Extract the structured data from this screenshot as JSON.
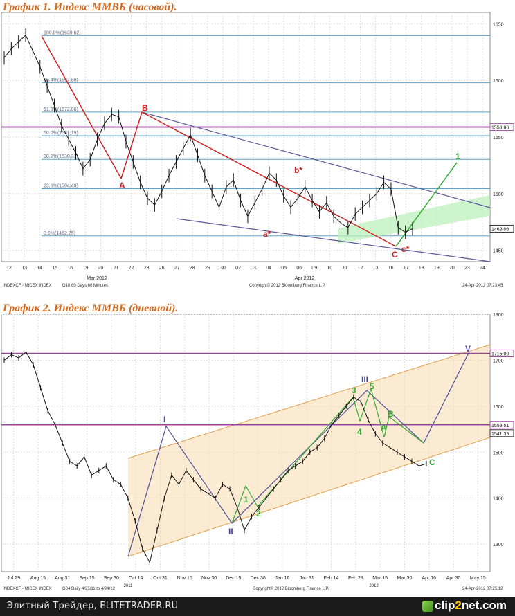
{
  "chart_data": [
    {
      "type": "line",
      "title": "График 1.   Индекс ММВБ (часовой).",
      "instrument_label": "INDEXCF - MICEX INDEX",
      "bar_setting": "G10   60 Days  60 Minutes",
      "copyright": "Copyright© 2012 Bloomberg Finance L.P.",
      "timestamp": "24-Apr-2012 07:23:45",
      "ylim": [
        1440,
        1660
      ],
      "y_ticks": [
        "1450",
        "1500",
        "1550",
        "1600",
        "1650"
      ],
      "x_ticks": [
        "12",
        "13",
        "14",
        "15",
        "16",
        "19",
        "20",
        "21",
        "22",
        "23",
        "26",
        "27",
        "28",
        "29",
        "30",
        "02",
        "03",
        "04",
        "05",
        "06",
        "09",
        "10",
        "11",
        "12",
        "13",
        "16",
        "17",
        "18",
        "19",
        "20",
        "23",
        "24"
      ],
      "x_month_labels": [
        "Mar 2012",
        "Apr 2012"
      ],
      "fib_levels": [
        {
          "label": "100.0%(1639.62)",
          "value": 1639.62
        },
        {
          "label": "76.4%(1597.88)",
          "value": 1597.88
        },
        {
          "label": "61.8%(1572.06)",
          "value": 1572.06
        },
        {
          "label": "50.0%(1551.19)",
          "value": 1551.19
        },
        {
          "label": "38.2%(1530.31)",
          "value": 1530.31
        },
        {
          "label": "23.6%(1504.49)",
          "value": 1504.49
        },
        {
          "label": "0.0%(1462.75)",
          "value": 1462.75
        }
      ],
      "price_tags": [
        {
          "label": "1558.86",
          "value": 1558.86,
          "color": "#b15ab1"
        },
        {
          "label": "1469.06",
          "value": 1469.06,
          "color": "#333333"
        }
      ],
      "wave_labels": [
        {
          "text": "A",
          "color": "#cc2222"
        },
        {
          "text": "B",
          "color": "#cc2222"
        },
        {
          "text": "a*",
          "color": "#cc2222"
        },
        {
          "text": "b*",
          "color": "#cc2222"
        },
        {
          "text": "C",
          "color": "#cc2222"
        },
        {
          "text": "c*",
          "color": "#cc2222"
        },
        {
          "text": "1",
          "color": "#33aa33"
        }
      ],
      "series": [
        {
          "values": [
            1620,
            1628,
            1634,
            1640,
            1626,
            1612,
            1595,
            1578,
            1560,
            1548,
            1536,
            1522,
            1530,
            1548,
            1562,
            1570,
            1568,
            1546,
            1528,
            1510,
            1496,
            1490,
            1502,
            1516,
            1528,
            1540,
            1552,
            1534,
            1516,
            1502,
            1488,
            1506,
            1512,
            1494,
            1480,
            1492,
            1504,
            1518,
            1512,
            1498,
            1488,
            1496,
            1506,
            1494,
            1484,
            1492,
            1480,
            1474,
            1470,
            1482,
            1488,
            1494,
            1500,
            1510,
            1504,
            1470,
            1466,
            1469
          ]
        }
      ]
    },
    {
      "type": "line",
      "title": "График 2.   Индекс ММВБ (дневной).",
      "instrument_label": "INDEXCF - MICEX INDEX",
      "bar_setting": "G04  Daily  4/25/11 to 4/24/12",
      "copyright": "Copyright© 2012 Bloomberg Finance L.P.",
      "timestamp": "24-Apr-2012 07:25:12",
      "ylim": [
        1240,
        1800
      ],
      "y_ticks": [
        "1300",
        "1400",
        "1500",
        "1600",
        "1700",
        "1800"
      ],
      "x_ticks": [
        "Jul 29",
        "Aug 15",
        "Aug 31",
        "Sep 15",
        "Sep 30",
        "Oct 14",
        "Oct 31",
        "Nov 15",
        "Nov 30",
        "Dec 15",
        "Dec 30",
        "Jan 16",
        "Jan 31",
        "Feb 14",
        "Feb 29",
        "Mar 15",
        "Mar 30",
        "Apr 16",
        "Apr 30",
        "May 15"
      ],
      "x_year_labels": [
        "2011",
        "2012"
      ],
      "price_tags": [
        {
          "label": "1715.00",
          "value": 1715.0,
          "color": "#a040a0"
        },
        {
          "label": "1559.51",
          "value": 1559.51,
          "color": "#a040a0"
        },
        {
          "label": "1541.39",
          "value": 1541.39,
          "color": "#333333"
        }
      ],
      "wave_labels": [
        {
          "text": "I",
          "color": "#4a4a9a"
        },
        {
          "text": "II",
          "color": "#4a4a9a"
        },
        {
          "text": "III",
          "color": "#4a4a9a"
        },
        {
          "text": "V",
          "color": "#4a4a9a"
        },
        {
          "text": "1",
          "color": "#33aa33"
        },
        {
          "text": "2",
          "color": "#33aa33"
        },
        {
          "text": "3",
          "color": "#33aa33"
        },
        {
          "text": "4",
          "color": "#33aa33"
        },
        {
          "text": "5",
          "color": "#33aa33"
        },
        {
          "text": "A",
          "color": "#33aa33"
        },
        {
          "text": "B",
          "color": "#33aa33"
        },
        {
          "text": "C",
          "color": "#33aa33"
        }
      ],
      "series": [
        {
          "values": [
            1700,
            1712,
            1705,
            1718,
            1690,
            1640,
            1590,
            1560,
            1520,
            1480,
            1470,
            1490,
            1450,
            1460,
            1470,
            1440,
            1430,
            1400,
            1350,
            1290,
            1260,
            1330,
            1400,
            1450,
            1430,
            1460,
            1440,
            1420,
            1410,
            1400,
            1430,
            1420,
            1380,
            1330,
            1360,
            1380,
            1400,
            1420,
            1440,
            1460,
            1470,
            1480,
            1500,
            1510,
            1530,
            1560,
            1580,
            1600,
            1620,
            1610,
            1570,
            1540,
            1520,
            1510,
            1500,
            1490,
            1480,
            1470,
            1475
          ]
        }
      ]
    }
  ],
  "footer": {
    "site_text": "Элитный Трейдер, ELITETRADER.RU",
    "brand_part1": "clip",
    "brand_part2": "2",
    "brand_part3": "net",
    "brand_part4": ".com"
  }
}
